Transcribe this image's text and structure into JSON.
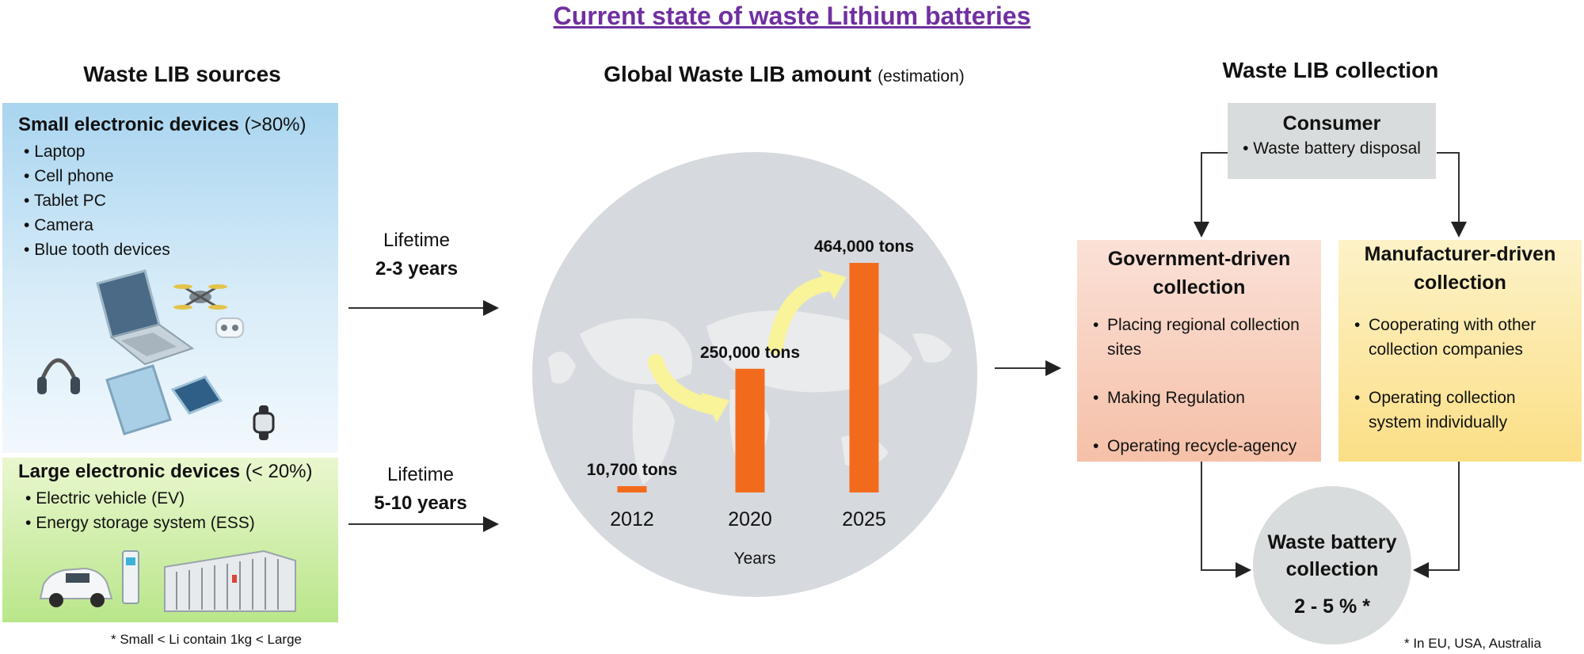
{
  "main_title": "Current state of waste Lithium batteries",
  "sources": {
    "title": "Waste LIB sources",
    "small": {
      "title": "Small electronic devices",
      "pct": " (>80%)",
      "items": [
        "Laptop",
        "Cell phone",
        "Tablet PC",
        "Camera",
        "Blue tooth devices"
      ]
    },
    "large": {
      "title": "Large electronic devices",
      "pct": " (< 20%)",
      "items": [
        "Electric vehicle (EV)",
        "Energy storage system (ESS)"
      ]
    },
    "footnote": "*  Small < Li contain 1kg < Large"
  },
  "lifetimes": [
    {
      "label": "Lifetime",
      "years": "2-3 years"
    },
    {
      "label": "Lifetime",
      "years": "5-10 years"
    }
  ],
  "amount": {
    "title": "Global Waste LIB amount",
    "subtitle": "(estimation)"
  },
  "chart_data": {
    "type": "bar",
    "categories": [
      "2012",
      "2020",
      "2025"
    ],
    "values": [
      10700,
      250000,
      464000
    ],
    "value_labels": [
      "10,700 tons",
      "250,000 tons",
      "464,000 tons"
    ],
    "xlabel": "Years",
    "ylabel": "",
    "ylim": [
      0,
      464000
    ],
    "bar_color": "#f26b1d",
    "arrow_color": "#f9f39a",
    "grid": false
  },
  "collection": {
    "title": "Waste LIB collection",
    "consumer": {
      "title": "Consumer",
      "item": "Waste battery disposal"
    },
    "government": {
      "title_1": "Government-driven",
      "title_2": "collection",
      "items": [
        "Placing regional collection sites",
        "Making Regulation",
        "Operating recycle-agency"
      ]
    },
    "manufacturer": {
      "title_1": "Manufacturer-driven",
      "title_2": "collection",
      "items": [
        "Cooperating with other collection companies",
        "Operating collection system individually"
      ]
    },
    "result": {
      "title_1": "Waste battery",
      "title_2": "collection",
      "value": "2 - 5 % *"
    },
    "footnote": "*  In EU, USA, Australia"
  },
  "colors": {
    "title": "#7030a0",
    "small_panel": "#a9d5f0",
    "large_panel": "#b9e68a",
    "government": "#f5c0a8",
    "manufacturer": "#fbdf86",
    "gray_box": "#d9dcdc",
    "globe": "#d6dade"
  },
  "icons": [
    "laptop-icon",
    "drone-icon",
    "earbuds-icon",
    "headphones-icon",
    "tablet-icon",
    "phone-icon",
    "smartwatch-icon",
    "electric-car-icon",
    "charging-station-icon",
    "ess-rack-icon",
    "world-map-icon"
  ]
}
